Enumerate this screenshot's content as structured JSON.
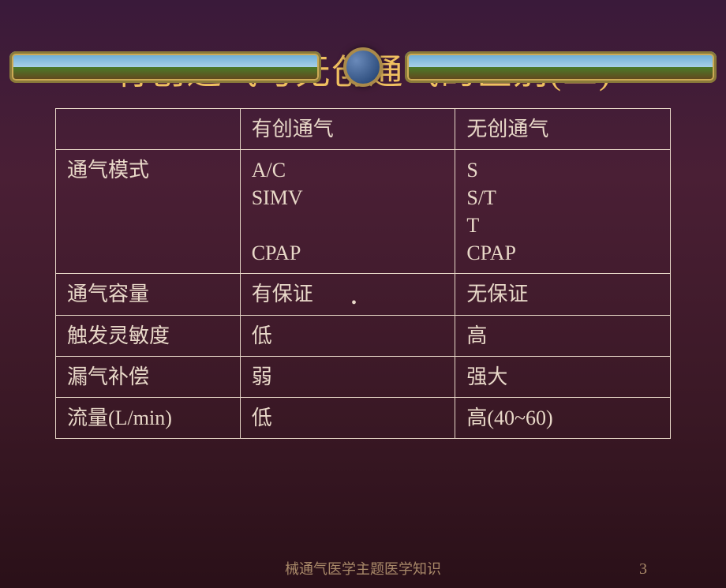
{
  "slide": {
    "title": "有创通气与无创通气的区别(二)",
    "footer_text": "械通气医学主题医学知识",
    "page_number": "3",
    "background_gradient": [
      "#3a1a3a",
      "#4a1f35",
      "#3a1825",
      "#2a1018"
    ],
    "title_color": "#f0c060",
    "text_color": "#e8d8c8",
    "border_color": "#e8d8c8"
  },
  "banner": {
    "sky_colors": [
      "#5ba3d0",
      "#a8d0e8"
    ],
    "land_colors": [
      "#4a7a2a",
      "#6a3a1a"
    ],
    "frame_color": "#8a7a3a",
    "jewel_colors": [
      "#6a8aba",
      "#1a3a6a"
    ]
  },
  "table": {
    "type": "table",
    "columns": [
      "",
      "有创通气",
      "无创通气"
    ],
    "column_widths_pct": [
      30,
      35,
      35
    ],
    "header": {
      "col0": "",
      "col1": "有创通气",
      "col2": "无创通气"
    },
    "rows": [
      {
        "label": "通气模式",
        "col1": "A/C\nSIMV\n\nCPAP",
        "col2": "S\nS/T\nT\nCPAP"
      },
      {
        "label": "通气容量",
        "col1": "有保证",
        "col2": "无保证"
      },
      {
        "label": "触发灵敏度",
        "col1": "低",
        "col2": "高"
      },
      {
        "label": "漏气补偿",
        "col1": "弱",
        "col2": "强大"
      },
      {
        "label": "流量(L/min)",
        "col1": "低",
        "col2": "高(40~60)"
      }
    ],
    "cell_fontsize": 26,
    "title_fontsize": 44
  }
}
